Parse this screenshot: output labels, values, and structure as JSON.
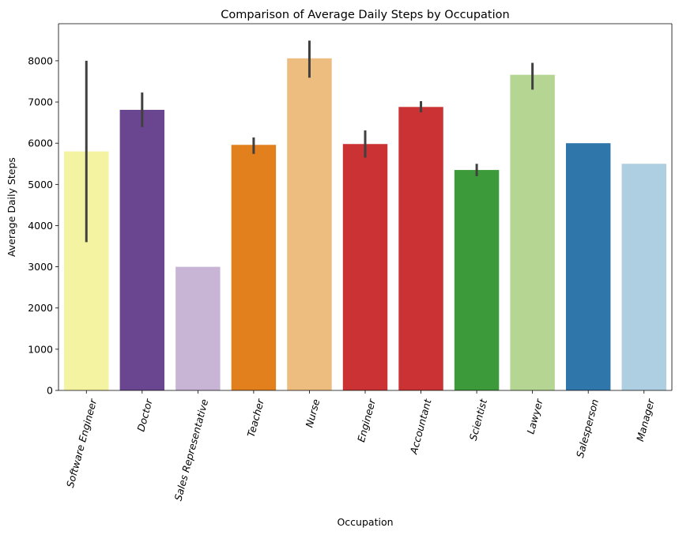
{
  "chart_data": {
    "type": "bar",
    "title": "Comparison of Average Daily Steps by Occupation",
    "xlabel": "Occupation",
    "ylabel": "Average Daily Steps",
    "ylim": [
      0,
      8900
    ],
    "yticks": [
      0,
      1000,
      2000,
      3000,
      4000,
      5000,
      6000,
      7000,
      8000
    ],
    "grid": false,
    "legend": "none",
    "categories": [
      "Software Engineer",
      "Doctor",
      "Sales Representative",
      "Teacher",
      "Nurse",
      "Engineer",
      "Accountant",
      "Scientist",
      "Lawyer",
      "Salesperson",
      "Manager"
    ],
    "values": [
      5800,
      6810,
      3000,
      5960,
      8060,
      5980,
      6880,
      5350,
      7660,
      6000,
      5500
    ],
    "error_low": [
      3600,
      6390,
      null,
      5740,
      7590,
      5650,
      6750,
      5200,
      7300,
      null,
      null
    ],
    "error_high": [
      8000,
      7230,
      null,
      6140,
      8490,
      6310,
      7020,
      5500,
      7950,
      null,
      null
    ],
    "colors": [
      "#f3f3a2",
      "#6a4690",
      "#c8b5d6",
      "#e2801e",
      "#ecbd7f",
      "#ca3233",
      "#ca3233",
      "#3c9a3a",
      "#b5d593",
      "#2f77ab",
      "#aecee1"
    ],
    "error_color": "#404040"
  }
}
